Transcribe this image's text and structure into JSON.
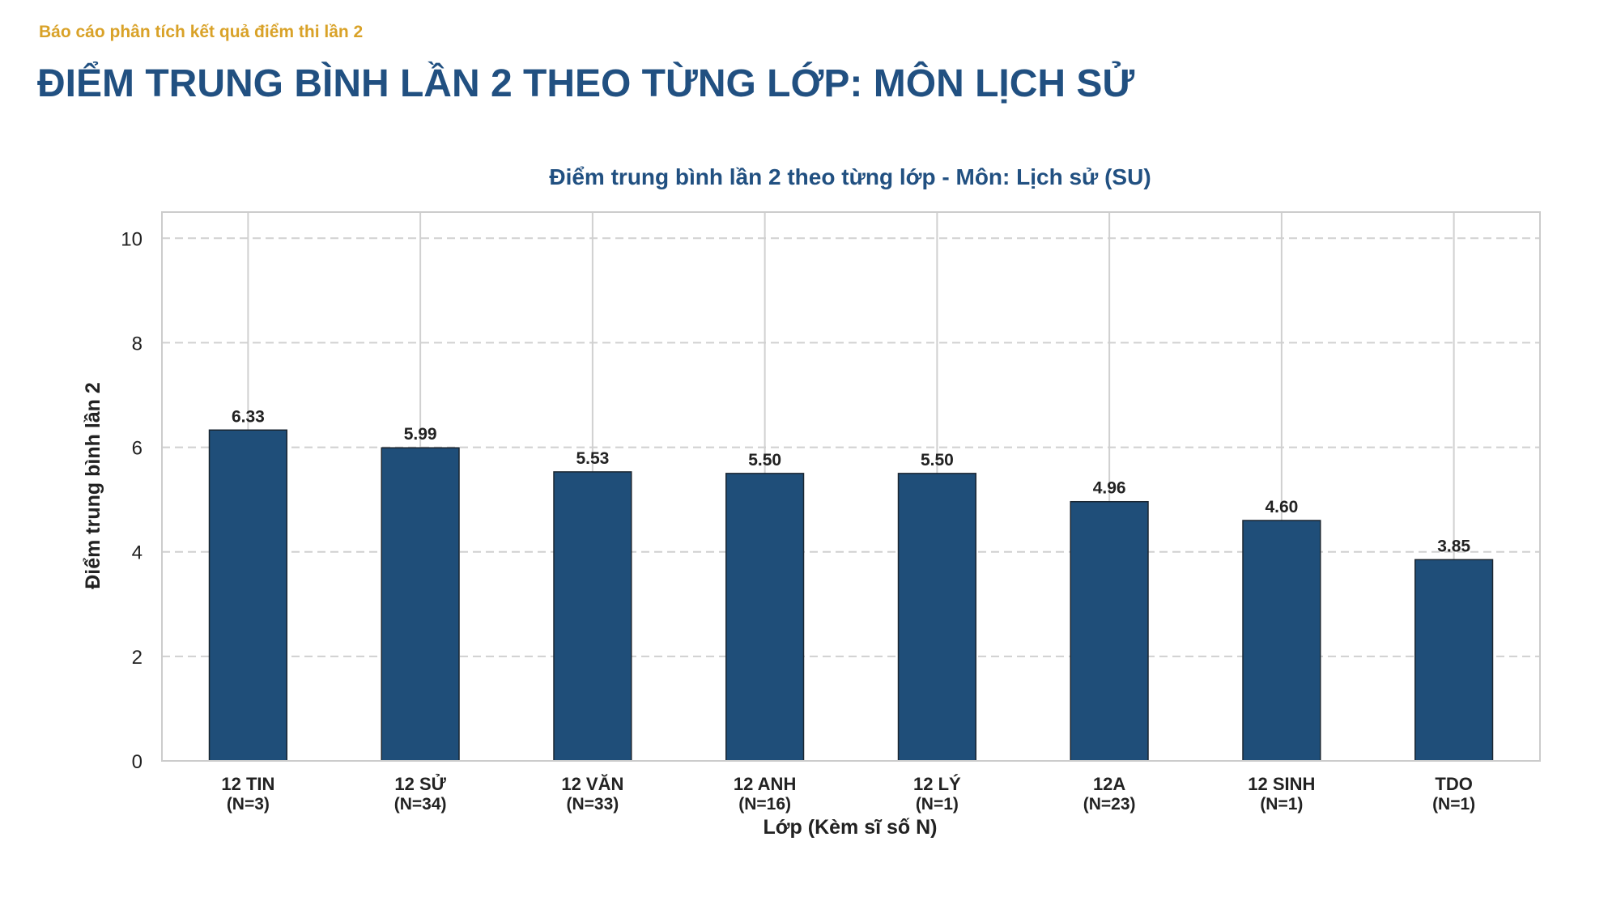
{
  "header": {
    "report_label": "Báo cáo phân tích kết quả điểm thi lần 2",
    "page_title": "ĐIỂM TRUNG BÌNH LẦN 2 THEO TỪNG LỚP: MÔN LỊCH SỬ"
  },
  "chart_data": {
    "type": "bar",
    "title": "Điểm trung bình lần 2 theo từng lớp - Môn: Lịch sử (SU)",
    "xlabel": "Lớp (Kèm sĩ số N)",
    "ylabel": "Điểm trung bình lần 2",
    "ylim": [
      0,
      10.5
    ],
    "yticks": [
      0,
      2,
      4,
      6,
      8,
      10
    ],
    "categories": [
      "12 TIN",
      "12 SỬ",
      "12 VĂN",
      "12 ANH",
      "12 LÝ",
      "12A",
      "12 SINH",
      "TDO"
    ],
    "counts": [
      "(N=3)",
      "(N=34)",
      "(N=33)",
      "(N=16)",
      "(N=1)",
      "(N=23)",
      "(N=1)",
      "(N=1)"
    ],
    "values": [
      6.33,
      5.99,
      5.53,
      5.5,
      5.5,
      4.96,
      4.6,
      3.85
    ],
    "value_labels": [
      "6.33",
      "5.99",
      "5.53",
      "5.50",
      "5.50",
      "4.96",
      "4.60",
      "3.85"
    ],
    "grid": true,
    "legend": "none",
    "colors": {
      "bar": "#1f4e79",
      "bar_edge": "#1a2530",
      "title": "#215081",
      "subtitle": "#d9a228",
      "grid": "#d0d0d0"
    }
  }
}
